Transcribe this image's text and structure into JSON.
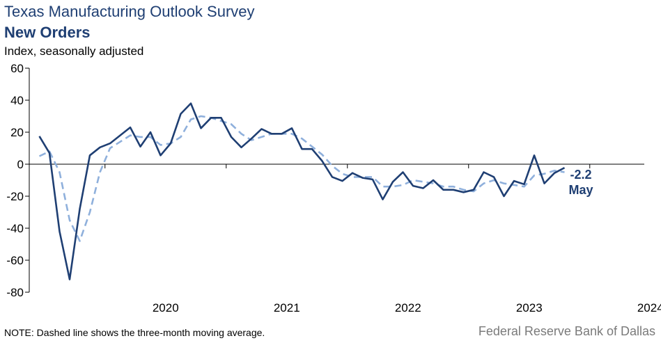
{
  "header": {
    "title": "Texas Manufacturing Outlook Survey",
    "subtitle": "New Orders"
  },
  "footer": {
    "note": "NOTE: Dashed line shows the three-month moving average.",
    "source": "Federal Reserve Bank of Dallas"
  },
  "colors": {
    "series_main": "#1f3f73",
    "series_avg": "#8fb0dc",
    "axis": "#000000"
  },
  "chart_data": {
    "type": "line",
    "title": "New Orders",
    "ylabel": "Index, seasonally adjusted",
    "xlabel": "",
    "ylim": [
      -80,
      60
    ],
    "yticks": [
      60,
      40,
      20,
      0,
      -20,
      -40,
      -60,
      -80
    ],
    "xticks": [
      "2020",
      "2021",
      "2022",
      "2023",
      "2024"
    ],
    "grid": false,
    "x_start": "2019-06",
    "series": [
      {
        "style": "solid",
        "values": [
          17.5,
          7,
          -42,
          -72,
          -28,
          5.5,
          10.5,
          13,
          18,
          23,
          11,
          20,
          5.5,
          13,
          31.5,
          38,
          22.5,
          29,
          29,
          17,
          10.5,
          16,
          22,
          19,
          19,
          22.5,
          9.5,
          9.5,
          2,
          -8,
          -10.5,
          -5.5,
          -8.5,
          -9.5,
          -22,
          -11,
          -5,
          -13.5,
          -15,
          -10,
          -16,
          -16,
          -17.5,
          -16,
          -5,
          -8,
          -20,
          -10.5,
          -12.5,
          5.5,
          -12,
          -5.5,
          -2.2
        ]
      },
      {
        "style": "dashed",
        "values": [
          5,
          8,
          -5,
          -35,
          -48,
          -30,
          -5,
          10,
          14,
          18,
          17,
          17,
          12,
          13,
          17,
          28,
          30,
          29,
          27,
          25,
          19,
          15,
          17,
          19,
          19,
          19,
          16,
          11,
          6,
          -1,
          -6,
          -8,
          -8,
          -8,
          -14,
          -14,
          -13,
          -10,
          -11,
          -12,
          -14,
          -14,
          -16,
          -17,
          -12,
          -10,
          -12,
          -13,
          -14,
          -7,
          -6,
          -4,
          -5
        ]
      }
    ],
    "annotation": {
      "value": "-2.2",
      "month": "May"
    }
  }
}
